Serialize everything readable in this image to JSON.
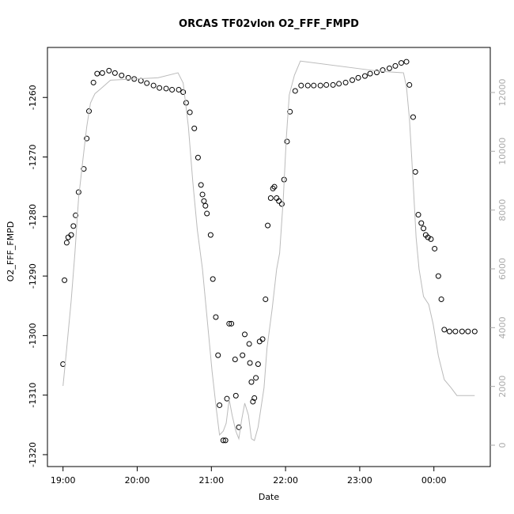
{
  "chart_data": {
    "type": "scatter",
    "title": "ORCAS TF02vlon O2_FFF_FMPD",
    "xlabel": "Date",
    "ylabel": "O2_FFF_FMPD",
    "xlim": [
      18.79,
      24.76
    ],
    "xticks": [
      {
        "value": 19,
        "label": "19:00"
      },
      {
        "value": 20,
        "label": "20:00"
      },
      {
        "value": 21,
        "label": "21:00"
      },
      {
        "value": 22,
        "label": "22:00"
      },
      {
        "value": 23,
        "label": "23:00"
      },
      {
        "value": 24,
        "label": "00:00"
      }
    ],
    "ylim": [
      -1322.0,
      -1251.6
    ],
    "yticks": [
      -1260,
      -1270,
      -1280,
      -1290,
      -1300,
      -1310,
      -1320
    ],
    "y2lim": [
      -726,
      13532
    ],
    "y2ticks": [
      0,
      2000,
      4000,
      6000,
      8000,
      10000,
      12000
    ],
    "y2tick_color": "#aaaaaa",
    "series": [
      {
        "style": "points",
        "color": "#000000",
        "x": [
          19.0,
          19.02,
          19.05,
          19.07,
          19.11,
          19.14,
          19.17,
          19.21,
          19.28,
          19.32,
          19.35,
          19.41,
          19.46,
          19.53,
          19.62,
          19.7,
          19.79,
          19.88,
          19.96,
          20.05,
          20.13,
          20.22,
          20.3,
          20.39,
          20.47,
          20.56,
          20.62,
          20.66,
          20.71,
          20.77,
          20.82,
          20.86,
          20.88,
          20.9,
          20.92,
          20.94,
          20.99,
          21.02,
          21.06,
          21.09,
          21.11,
          21.16,
          21.19,
          21.21,
          21.24,
          21.27,
          21.32,
          21.33,
          21.37,
          21.42,
          21.45,
          21.51,
          21.52,
          21.54,
          21.56,
          21.58,
          21.6,
          21.63,
          21.65,
          21.69,
          21.73,
          21.76,
          21.8,
          21.83,
          21.85,
          21.88,
          21.91,
          21.95,
          21.98,
          22.02,
          22.06,
          22.13,
          22.21,
          22.3,
          22.38,
          22.47,
          22.55,
          22.64,
          22.72,
          22.81,
          22.9,
          22.98,
          23.07,
          23.14,
          23.23,
          23.31,
          23.4,
          23.48,
          23.56,
          23.63,
          23.67,
          23.72,
          23.75,
          23.79,
          23.83,
          23.86,
          23.89,
          23.92,
          23.96,
          24.01,
          24.06,
          24.1,
          24.14,
          24.21,
          24.29,
          24.38,
          24.46,
          24.55
        ],
        "values": [
          -1304.8,
          -1290.7,
          -1284.4,
          -1283.5,
          -1283.1,
          -1281.6,
          -1279.8,
          -1275.9,
          -1272.0,
          -1266.9,
          -1262.3,
          -1257.5,
          -1256.0,
          -1255.9,
          -1255.5,
          -1255.9,
          -1256.3,
          -1256.7,
          -1256.9,
          -1257.2,
          -1257.6,
          -1258.0,
          -1258.4,
          -1258.5,
          -1258.7,
          -1258.7,
          -1259.1,
          -1260.9,
          -1262.5,
          -1265.2,
          -1270.1,
          -1274.7,
          -1276.3,
          -1277.4,
          -1278.2,
          -1279.5,
          -1283.1,
          -1290.5,
          -1296.9,
          -1303.3,
          -1311.7,
          -1317.6,
          -1317.6,
          -1310.6,
          -1298.0,
          -1298.0,
          -1304.0,
          -1310.1,
          -1315.4,
          -1303.3,
          -1299.8,
          -1301.4,
          -1304.6,
          -1307.8,
          -1311.1,
          -1310.5,
          -1307.1,
          -1304.8,
          -1301.0,
          -1300.6,
          -1293.9,
          -1281.5,
          -1276.9,
          -1275.3,
          -1275.0,
          -1276.9,
          -1277.4,
          -1277.9,
          -1273.8,
          -1267.4,
          -1262.4,
          -1258.9,
          -1258.0,
          -1258.0,
          -1258.0,
          -1258.0,
          -1257.9,
          -1257.9,
          -1257.7,
          -1257.5,
          -1257.1,
          -1256.7,
          -1256.4,
          -1256.0,
          -1255.8,
          -1255.4,
          -1255.1,
          -1254.7,
          -1254.2,
          -1254.0,
          -1257.9,
          -1263.3,
          -1272.5,
          -1279.7,
          -1281.1,
          -1282.0,
          -1283.1,
          -1283.5,
          -1283.8,
          -1285.4,
          -1290.0,
          -1293.9,
          -1299.0,
          -1299.3,
          -1299.3,
          -1299.3,
          -1299.3,
          -1299.3
        ]
      },
      {
        "style": "line",
        "axis": "y2",
        "color": "#bbbbbb",
        "x": [
          19.0,
          19.05,
          19.11,
          19.16,
          19.21,
          19.27,
          19.32,
          19.37,
          19.43,
          19.51,
          19.64,
          20.28,
          20.55,
          20.62,
          20.69,
          20.75,
          20.81,
          20.88,
          20.94,
          21.01,
          21.07,
          21.11,
          21.16,
          21.2,
          21.24,
          21.28,
          21.33,
          21.37,
          21.41,
          21.45,
          21.5,
          21.54,
          21.58,
          21.63,
          21.67,
          21.71,
          21.75,
          21.82,
          21.88,
          21.92,
          21.97,
          22.01,
          22.05,
          22.12,
          22.2,
          23.27,
          23.59,
          23.63,
          23.67,
          23.72,
          23.76,
          23.8,
          23.86,
          23.93,
          23.99,
          24.06,
          24.14,
          24.23,
          24.31,
          24.55
        ],
        "values": [
          2016,
          3306,
          4919,
          6530,
          8410,
          9760,
          10840,
          11640,
          11960,
          12130,
          12420,
          12500,
          12670,
          12320,
          10840,
          8950,
          7340,
          5990,
          4380,
          2500,
          1160,
          350,
          480,
          750,
          1560,
          1020,
          480,
          220,
          890,
          1430,
          1020,
          220,
          160,
          620,
          1290,
          1960,
          3306,
          4650,
          5990,
          6530,
          8410,
          10440,
          11920,
          12590,
          13070,
          12720,
          12670,
          12190,
          11110,
          8950,
          7070,
          5990,
          5060,
          4790,
          4120,
          3040,
          2230,
          1960,
          1690,
          1690
        ]
      }
    ]
  }
}
